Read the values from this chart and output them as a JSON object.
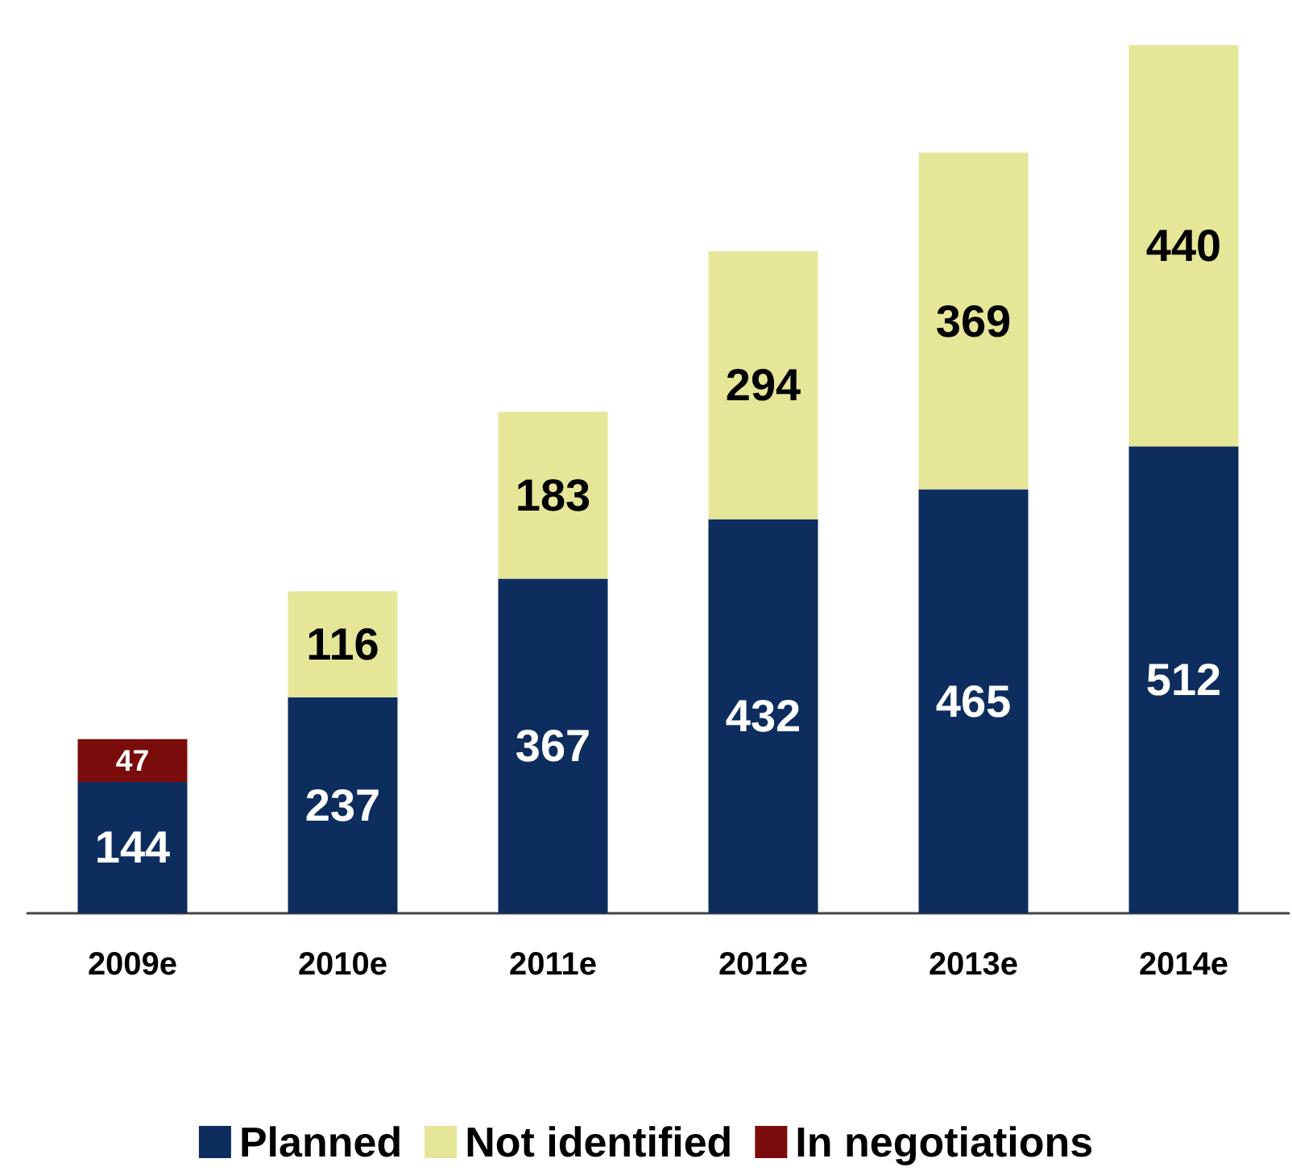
{
  "chart_data": {
    "type": "bar",
    "stacked": true,
    "tick_labels": "x",
    "data_labels": true,
    "legend": "bottom",
    "categories": [
      "2009e",
      "2010e",
      "2011e",
      "2012e",
      "2013e",
      "2014e"
    ],
    "series": [
      {
        "name": "Planned",
        "color": "#0d2d5e",
        "values": [
          144,
          237,
          367,
          432,
          465,
          512
        ]
      },
      {
        "name": "Not identified",
        "color": "#e6e699",
        "values": [
          null,
          116,
          183,
          294,
          369,
          440
        ]
      },
      {
        "name": "In negotiations",
        "color": "#7a0c0c",
        "values": [
          47,
          null,
          null,
          null,
          null,
          null
        ]
      }
    ]
  }
}
